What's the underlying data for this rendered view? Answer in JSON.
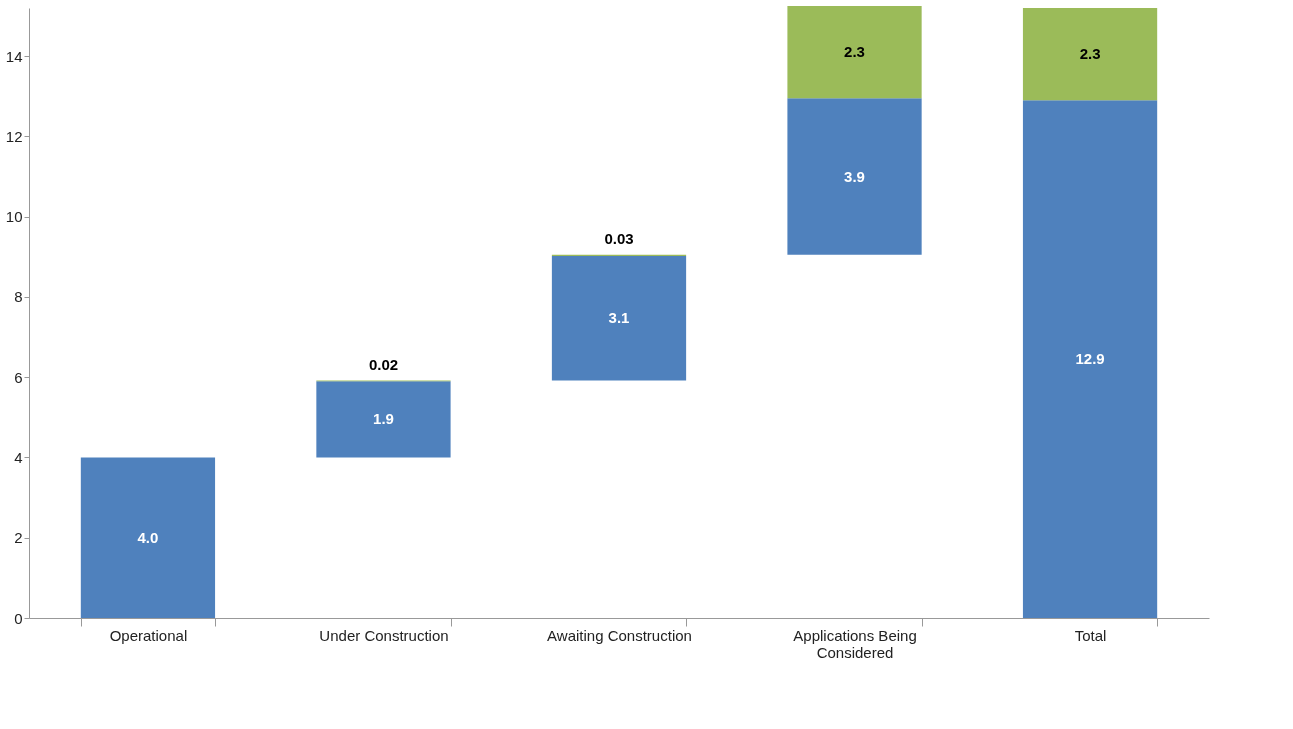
{
  "chart_data": {
    "type": "bar",
    "categories": [
      "Operational",
      "Under Construction",
      "Awaiting Construction",
      "Applications Being Considered",
      "Total"
    ],
    "series": [
      {
        "color": "#4f81bd",
        "base": [
          0,
          4.0,
          5.92,
          9.05,
          0
        ],
        "values": [
          4.0,
          1.9,
          3.1,
          3.9,
          12.9
        ],
        "value_labels": [
          "4.0",
          "1.9",
          "3.1",
          "3.9",
          "12.9"
        ]
      },
      {
        "color": "#9bbb59",
        "base": [
          null,
          5.9,
          9.02,
          12.95,
          12.9
        ],
        "values": [
          null,
          0.02,
          0.03,
          2.3,
          2.3
        ],
        "value_labels": [
          null,
          "0.02",
          "0.03",
          "2.3",
          "2.3"
        ]
      }
    ],
    "ylim": [
      0,
      15.2
    ],
    "yticks": [
      0,
      2,
      4,
      6,
      8,
      10,
      12,
      14
    ],
    "grid": false,
    "legend": false
  }
}
